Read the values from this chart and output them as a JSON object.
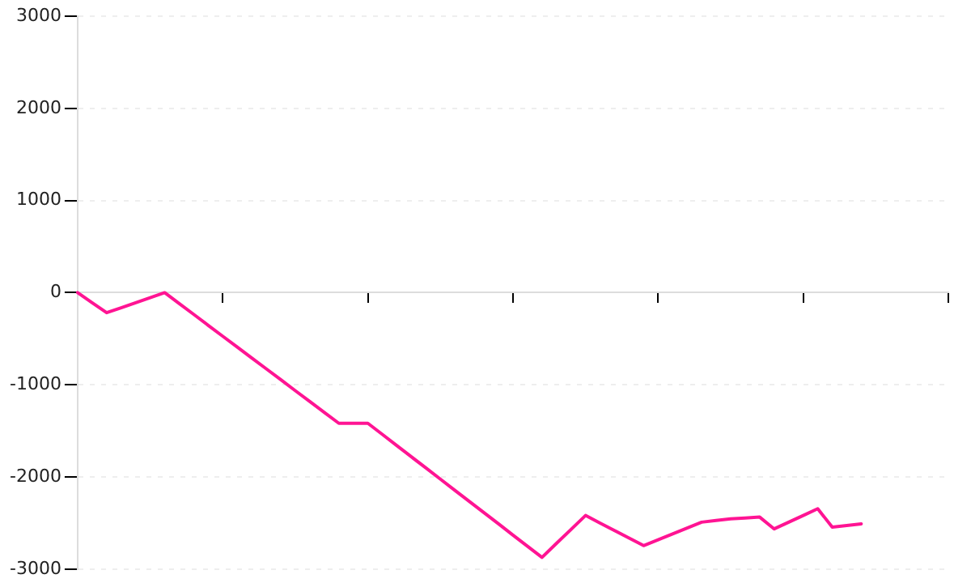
{
  "chart_data": {
    "type": "line",
    "categories": [
      null,
      null,
      null,
      null,
      null,
      null,
      null,
      null,
      null,
      null,
      null,
      null,
      null,
      null,
      null,
      null,
      null,
      null,
      null,
      null,
      null,
      null,
      null,
      null,
      null,
      null,
      null,
      null,
      null,
      null,
      null,
      null,
      null,
      null,
      null,
      null,
      null,
      null,
      null,
      null,
      null,
      null,
      null,
      null,
      null,
      null,
      null,
      null,
      null,
      null,
      null,
      null,
      null,
      null,
      null,
      null,
      null,
      null,
      null,
      null,
      null
    ],
    "series": [
      {
        "color": "#ff1493",
        "values": [
          0,
          -109,
          -218,
          -164,
          -109,
          -55,
          0,
          -118,
          -236,
          -355,
          -473,
          -591,
          -709,
          -827,
          -945,
          -1064,
          -1182,
          -1300,
          -1418,
          -1418,
          -1418,
          -1539,
          -1661,
          -1782,
          -1903,
          -2024,
          -2146,
          -2267,
          -2388,
          -2509,
          -2631,
          -2752,
          -2873,
          -2721,
          -2570,
          -2418,
          -2500,
          -2582,
          -2663,
          -2745,
          -2682,
          -2618,
          -2555,
          -2491,
          -2473,
          -2455,
          -2446,
          -2436,
          -2564,
          -2491,
          -2418,
          -2345,
          -2545,
          -2527,
          -2509,
          null,
          null,
          null,
          null,
          null,
          null
        ]
      }
    ],
    "ylim": [
      -3000,
      3000
    ],
    "yticks": [
      -3000,
      -2000,
      -1000,
      0,
      1000,
      2000,
      3000
    ],
    "tick_labels": "y",
    "grid": "y",
    "legend": false,
    "marker": "none",
    "line_style": "solid"
  }
}
